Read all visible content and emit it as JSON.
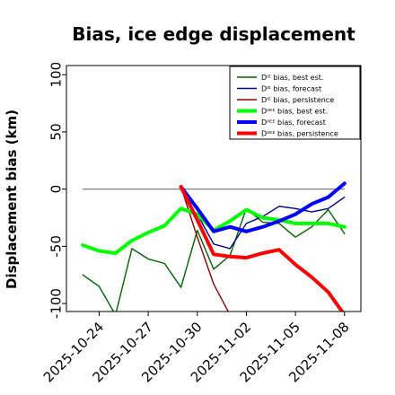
{
  "chart_data": {
    "type": "line",
    "title": "Bias, ice edge displacement",
    "ylabel": "Displacement bias (km)",
    "xlabel": "",
    "ylim": [
      -107,
      108
    ],
    "xlim": [
      "2025-10-22",
      "2025-11-09"
    ],
    "grid": false,
    "legend_position": "top-right",
    "y_ticks": [
      100,
      50,
      0,
      -50,
      -100
    ],
    "x_ticks": [
      {
        "date": "2025-10-24",
        "label": "2025-10-24",
        "color": "#000000"
      },
      {
        "date": "2025-10-27",
        "label": "2025-10-27",
        "color": "#000000"
      },
      {
        "date": "2025-10-30",
        "label": "2025-10-30",
        "color": "#228B22"
      },
      {
        "date": "2025-11-02",
        "label": "2025-11-02",
        "color": "#000000"
      },
      {
        "date": "2025-11-05",
        "label": "2025-11-05",
        "color": "#000000"
      },
      {
        "date": "2025-11-08",
        "label": "2025-11-08",
        "color": "#000000"
      }
    ],
    "reference_line": {
      "y": 0,
      "x_start": "2025-10-23",
      "x_end": "2025-11-08",
      "color": "#808080"
    },
    "series": [
      {
        "name": "Dᴵᴱ bias, best est.",
        "color": "#006400",
        "width": 1.4,
        "points": [
          [
            "2025-10-23",
            -75
          ],
          [
            "2025-10-24",
            -85
          ],
          [
            "2025-10-25",
            -110
          ],
          [
            "2025-10-26",
            -52
          ],
          [
            "2025-10-27",
            -61
          ],
          [
            "2025-10-28",
            -65
          ],
          [
            "2025-10-29",
            -86
          ],
          [
            "2025-10-30",
            -36
          ],
          [
            "2025-10-31",
            -70
          ],
          [
            "2025-11-01",
            -58
          ],
          [
            "2025-11-02",
            -17
          ],
          [
            "2025-11-03",
            -29
          ],
          [
            "2025-11-04",
            -30
          ],
          [
            "2025-11-05",
            -42
          ],
          [
            "2025-11-06",
            -33
          ],
          [
            "2025-11-07",
            -18
          ],
          [
            "2025-11-08",
            -39
          ]
        ]
      },
      {
        "name": "Dᴵᴱ bias, forecast",
        "color": "#00008B",
        "width": 1.4,
        "points": [
          [
            "2025-10-30",
            -22
          ],
          [
            "2025-10-31",
            -48
          ],
          [
            "2025-11-01",
            -52
          ],
          [
            "2025-11-02",
            -30
          ],
          [
            "2025-11-03",
            -24
          ],
          [
            "2025-11-04",
            -15
          ],
          [
            "2025-11-05",
            -17
          ],
          [
            "2025-11-06",
            -20
          ],
          [
            "2025-11-07",
            -17
          ],
          [
            "2025-11-08",
            -7
          ]
        ]
      },
      {
        "name": "Dᴵᴱ bias, persistence",
        "color": "#8B0000",
        "width": 1.4,
        "points": [
          [
            "2025-10-29",
            2
          ],
          [
            "2025-10-30",
            -42
          ],
          [
            "2025-10-31",
            -83
          ],
          [
            "2025-11-01",
            -110
          ]
        ]
      },
      {
        "name": "Dᴵᴵᴱᴱ bias, best est.",
        "color": "#00FF00",
        "width": 4,
        "points": [
          [
            "2025-10-23",
            -49
          ],
          [
            "2025-10-24",
            -54
          ],
          [
            "2025-10-25",
            -56
          ],
          [
            "2025-10-26",
            -45
          ],
          [
            "2025-10-27",
            -38
          ],
          [
            "2025-10-28",
            -32
          ],
          [
            "2025-10-29",
            -17
          ],
          [
            "2025-10-30",
            -22
          ],
          [
            "2025-10-31",
            -36
          ],
          [
            "2025-11-01",
            -28
          ],
          [
            "2025-11-02",
            -18
          ],
          [
            "2025-11-03",
            -25
          ],
          [
            "2025-11-04",
            -27
          ],
          [
            "2025-11-05",
            -30
          ],
          [
            "2025-11-06",
            -30
          ],
          [
            "2025-11-07",
            -30
          ],
          [
            "2025-11-08",
            -33
          ]
        ]
      },
      {
        "name": "Dᴵᴵᴱᴱ bias, forecast",
        "color": "#0000FF",
        "width": 4,
        "points": [
          [
            "2025-10-29",
            2
          ],
          [
            "2025-10-30",
            -17
          ],
          [
            "2025-10-31",
            -37
          ],
          [
            "2025-11-01",
            -33
          ],
          [
            "2025-11-02",
            -37
          ],
          [
            "2025-11-03",
            -33
          ],
          [
            "2025-11-04",
            -28
          ],
          [
            "2025-11-05",
            -22
          ],
          [
            "2025-11-06",
            -13
          ],
          [
            "2025-11-07",
            -7
          ],
          [
            "2025-11-08",
            5
          ]
        ]
      },
      {
        "name": "Dᴵᴵᴱᴱ bias, persistence",
        "color": "#FF0000",
        "width": 4,
        "points": [
          [
            "2025-10-29",
            2
          ],
          [
            "2025-10-30",
            -27
          ],
          [
            "2025-10-31",
            -57
          ],
          [
            "2025-11-01",
            -59
          ],
          [
            "2025-11-02",
            -60
          ],
          [
            "2025-11-03",
            -56
          ],
          [
            "2025-11-04",
            -53
          ],
          [
            "2025-11-05",
            -66
          ],
          [
            "2025-11-06",
            -77
          ],
          [
            "2025-11-07",
            -90
          ],
          [
            "2025-11-08",
            -110
          ]
        ]
      }
    ]
  }
}
